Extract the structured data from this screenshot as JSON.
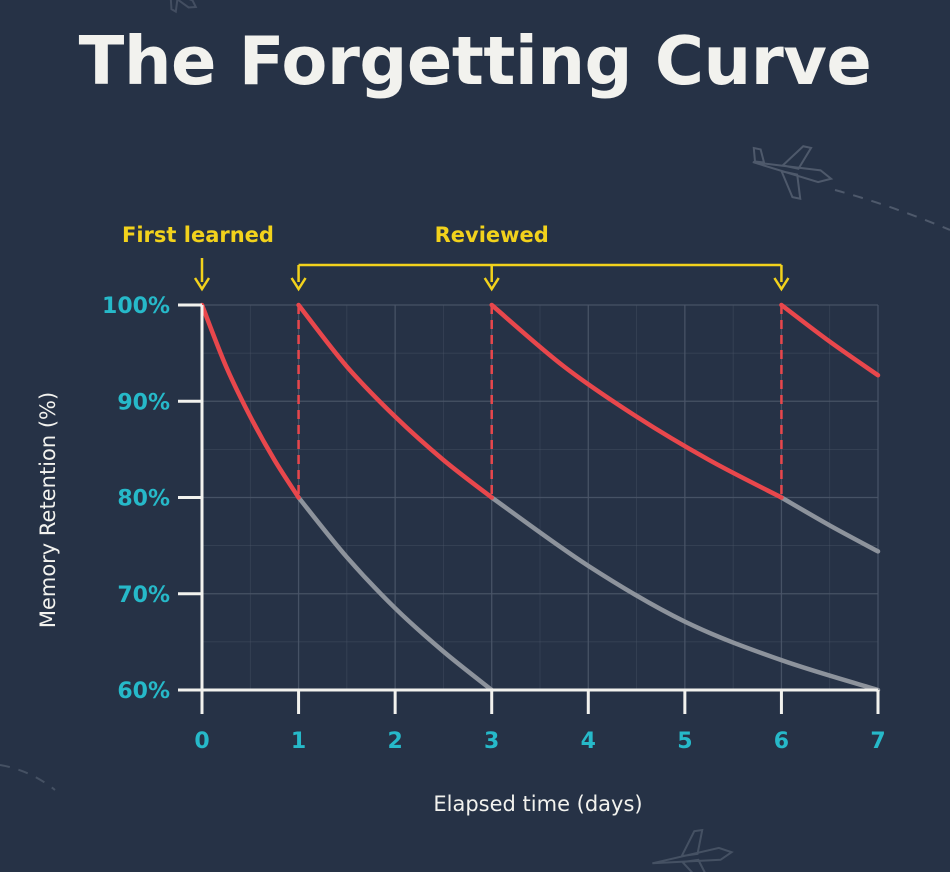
{
  "title": "The Forgetting Curve",
  "colors": {
    "background": "#263246",
    "accent": "#26b9c9",
    "review_curve": "#e8474c",
    "decay_curve": "#8d939c",
    "annotation": "#f2d21c",
    "axis": "#f2f2ee",
    "grid": "#4a5568"
  },
  "decorations": [
    "airplane-icon",
    "airplane-icon",
    "airplane-icon"
  ],
  "chart_data": {
    "type": "line",
    "title": "The Forgetting Curve",
    "xlabel": "Elapsed time (days)",
    "ylabel": "Memory Retention (%)",
    "xlim": [
      0,
      7
    ],
    "ylim": [
      60,
      100
    ],
    "x_ticks": [
      0,
      1,
      2,
      3,
      4,
      5,
      6,
      7
    ],
    "y_ticks": [
      60,
      70,
      80,
      90,
      100
    ],
    "y_tick_labels": [
      "60%",
      "70%",
      "80%",
      "90%",
      "100%"
    ],
    "grid": true,
    "series": [
      {
        "role": "review",
        "color": "#e8474c",
        "segments": [
          {
            "x": [
              0,
              0.25,
              0.5,
              0.75,
              1
            ],
            "y": [
              100,
              93.6,
              88.4,
              83.9,
              80
            ]
          },
          {
            "x": [
              1,
              1.5,
              2,
              2.5,
              3
            ],
            "y": [
              100,
              93.6,
              88.4,
              83.9,
              80
            ]
          },
          {
            "x": [
              3,
              3.75,
              4.5,
              5.25,
              6
            ],
            "y": [
              100,
              93.6,
              88.4,
              83.9,
              80
            ]
          },
          {
            "x": [
              6,
              6.5,
              7
            ],
            "y": [
              100,
              96.2,
              92.7
            ]
          }
        ]
      },
      {
        "role": "decay",
        "color": "#8d939c",
        "segments": [
          {
            "x": [
              1,
              1.5,
              2,
              2.5,
              3
            ],
            "y": [
              80,
              73.8,
              68.5,
              64,
              60
            ]
          },
          {
            "x": [
              3,
              4,
              5,
              6,
              7
            ],
            "y": [
              80,
              72.9,
              67.1,
              63.1,
              60
            ]
          },
          {
            "x": [
              6,
              6.5,
              7
            ],
            "y": [
              80,
              77.1,
              74.4
            ]
          }
        ]
      }
    ],
    "review_drops": [
      1,
      3,
      6
    ],
    "annotations": {
      "first_learned": {
        "label": "First learned",
        "x": 0
      },
      "reviewed": {
        "label": "Reviewed",
        "x": [
          1,
          3,
          6
        ]
      }
    }
  }
}
